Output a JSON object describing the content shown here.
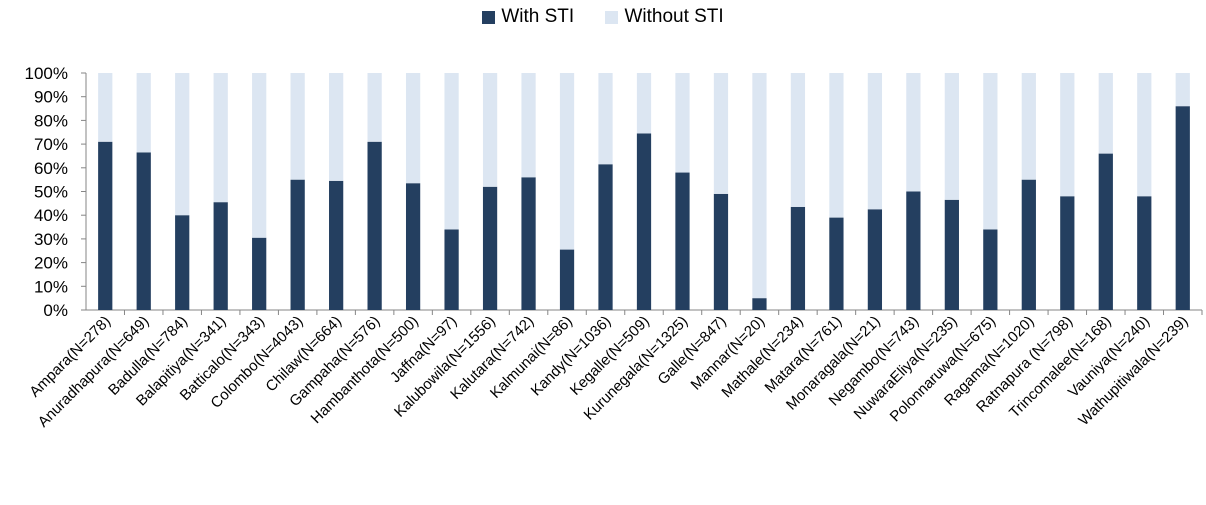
{
  "chart_data": {
    "type": "bar",
    "stacked": true,
    "percent_stacked": true,
    "title": "",
    "xlabel": "",
    "ylabel": "",
    "ylim": [
      0,
      100
    ],
    "y_ticks": [
      "0%",
      "10%",
      "20%",
      "30%",
      "40%",
      "50%",
      "60%",
      "70%",
      "80%",
      "90%",
      "100%"
    ],
    "grid": false,
    "legend_position": "top-center",
    "categories": [
      "Ampara(N=278)",
      "Anuradhapura(N=649)",
      "Badulla(N=784)",
      "Balapitiya(N=341)",
      "Batticalo(N=343)",
      "Colombo(N=4043)",
      "Chilaw(N=664)",
      "Gampaha(N=576)",
      "Hambanthota(N=500)",
      "Jaffna(N=97)",
      "Kalubowila(N=1556)",
      "Kalutara(N=742)",
      "Kalmunai(N=86)",
      "Kandy(N=1036)",
      "Kegalle(N=509)",
      "Kurunegala(N=1325)",
      "Galle(N=847)",
      "Mannar(N=20)",
      "Mathale(N=234)",
      "Matara(N=761)",
      "Monaragala(N=21)",
      "Negambo(N=743)",
      "NuwaraEliya(N=235)",
      "Polonnaruwa(N=675)",
      "Ragama(N=1020)",
      "Ratnapura (N=798)",
      "Trincomalee(N=168)",
      "Vauniya(N=240)",
      "Wathupitiwala(N=239)"
    ],
    "series": [
      {
        "name": "With STI",
        "color": "#243f60",
        "values": [
          71,
          66.5,
          40,
          45.5,
          30.5,
          55,
          54.5,
          71,
          53.5,
          34,
          52,
          56,
          25.5,
          61.5,
          74.5,
          58,
          49,
          5,
          43.5,
          39,
          42.5,
          50,
          46.5,
          34,
          55,
          48,
          66,
          48,
          86
        ]
      },
      {
        "name": "Without STI",
        "color": "#dce6f2",
        "values": [
          29,
          33.5,
          60,
          54.5,
          69.5,
          45,
          45.5,
          29,
          46.5,
          66,
          48,
          44,
          74.5,
          38.5,
          25.5,
          42,
          51,
          95,
          56.5,
          61,
          57.5,
          50,
          53.5,
          66,
          45,
          52,
          34,
          52,
          14
        ]
      }
    ]
  }
}
